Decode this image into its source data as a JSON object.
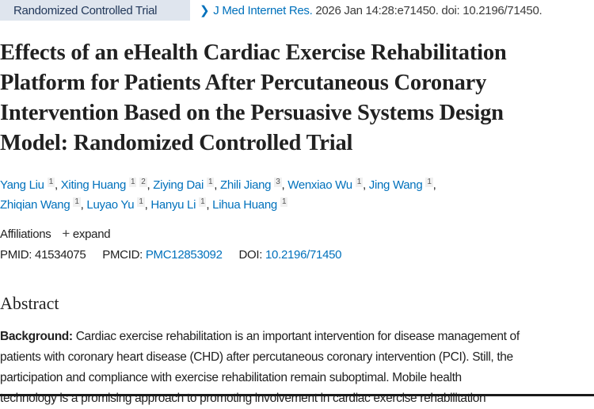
{
  "badge": "Randomized Controlled Trial",
  "citation": {
    "journal": "J Med Internet Res.",
    "rest": " 2026 Jan 14:28:e71450. doi: 10.2196/71450."
  },
  "title_lines": [
    "Effects of an eHealth Cardiac Exercise Rehabilitation",
    "Platform for Patients After Percutaneous Coronary",
    "Intervention Based on the Persuasive Systems Design",
    "Model: Randomized Controlled Trial"
  ],
  "authors": [
    {
      "name": "Yang Liu",
      "affs": [
        "1"
      ]
    },
    {
      "name": "Xiting Huang",
      "affs": [
        "1",
        "2"
      ]
    },
    {
      "name": "Ziying Dai",
      "affs": [
        "1"
      ]
    },
    {
      "name": "Zhili Jiang",
      "affs": [
        "3"
      ]
    },
    {
      "name": "Wenxiao Wu",
      "affs": [
        "1"
      ]
    },
    {
      "name": "Jing Wang",
      "affs": [
        "1"
      ]
    },
    {
      "name": "Zhiqian Wang",
      "affs": [
        "1"
      ]
    },
    {
      "name": "Luyao Yu",
      "affs": [
        "1"
      ]
    },
    {
      "name": "Hanyu Li",
      "affs": [
        "1"
      ]
    },
    {
      "name": "Lihua Huang",
      "affs": [
        "1"
      ]
    }
  ],
  "affiliations": {
    "label": "Affiliations",
    "toggle": "expand"
  },
  "ids": {
    "pmid_label": "PMID:",
    "pmid": "41534075",
    "pmcid_label": "PMCID:",
    "pmcid": "PMC12853092",
    "doi_label": "DOI:",
    "doi": "10.2196/71450"
  },
  "abstract": {
    "heading": "Abstract",
    "background_label": "Background:",
    "lines": [
      " Cardiac exercise rehabilitation is an important intervention for disease management of",
      "patients with coronary heart disease (CHD) after percutaneous coronary intervention (PCI). Still, the",
      "participation and compliance with exercise rehabilitation remain suboptimal. Mobile health",
      "technology is a promising approach to promoting involvement in cardiac exercise rehabilitation"
    ]
  }
}
